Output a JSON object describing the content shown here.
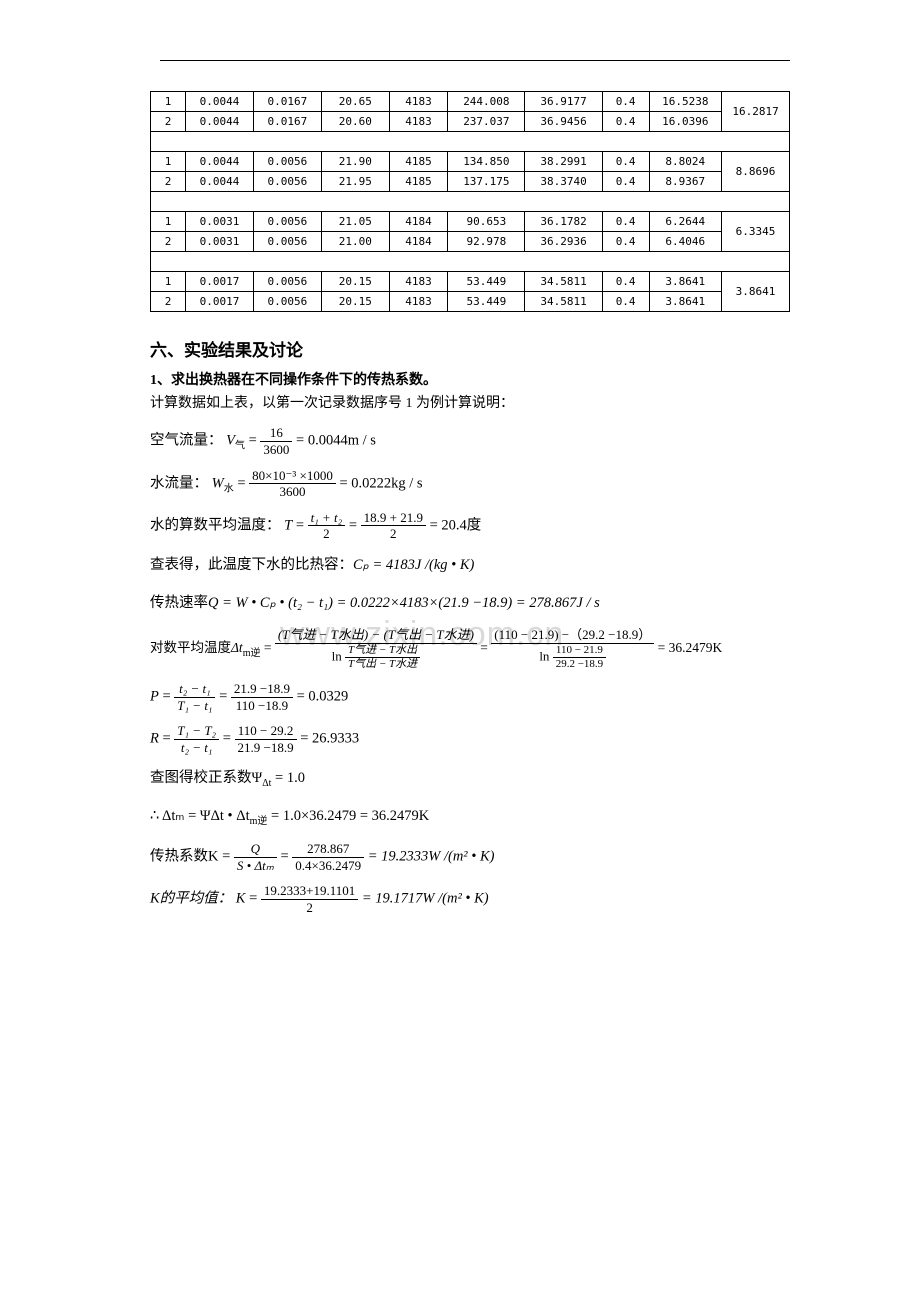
{
  "table": {
    "col_widths": [
      "30px",
      "58px",
      "58px",
      "58px",
      "50px",
      "66px",
      "66px",
      "40px",
      "62px",
      "58px"
    ],
    "groups": [
      {
        "rows": [
          [
            "1",
            "0.0044",
            "0.0167",
            "20.65",
            "4183",
            "244.008",
            "36.9177",
            "0.4",
            "16.5238"
          ],
          [
            "2",
            "0.0044",
            "0.0167",
            "20.60",
            "4183",
            "237.037",
            "36.9456",
            "0.4",
            "16.0396"
          ]
        ],
        "avg": "16.2817"
      },
      {
        "rows": [
          [
            "1",
            "0.0044",
            "0.0056",
            "21.90",
            "4185",
            "134.850",
            "38.2991",
            "0.4",
            "8.8024"
          ],
          [
            "2",
            "0.0044",
            "0.0056",
            "21.95",
            "4185",
            "137.175",
            "38.3740",
            "0.4",
            "8.9367"
          ]
        ],
        "avg": "8.8696"
      },
      {
        "rows": [
          [
            "1",
            "0.0031",
            "0.0056",
            "21.05",
            "4184",
            "90.653",
            "36.1782",
            "0.4",
            "6.2644"
          ],
          [
            "2",
            "0.0031",
            "0.0056",
            "21.00",
            "4184",
            "92.978",
            "36.2936",
            "0.4",
            "6.4046"
          ]
        ],
        "avg": "6.3345"
      },
      {
        "rows": [
          [
            "1",
            "0.0017",
            "0.0056",
            "20.15",
            "4183",
            "53.449",
            "34.5811",
            "0.4",
            "3.8641"
          ],
          [
            "2",
            "0.0017",
            "0.0056",
            "20.15",
            "4183",
            "53.449",
            "34.5811",
            "0.4",
            "3.8641"
          ]
        ],
        "avg": "3.8641"
      }
    ]
  },
  "section6": {
    "title": "六、实验结果及讨论",
    "subtitle": "1、求出换热器在不同操作条件下的传热系数。",
    "intro": "计算数据如上表，以第一次记录数据序号 1 为例计算说明："
  },
  "formulas": {
    "air_flow_label": "空气流量：",
    "air_flow_var": "V",
    "air_flow_sub": "气",
    "air_flow_num": "16",
    "air_flow_den": "3600",
    "air_flow_result": "= 0.0044m / s",
    "water_flow_label": "水流量：",
    "water_flow_var": "W",
    "water_flow_sub": "水",
    "water_flow_num": "80×10⁻³ ×1000",
    "water_flow_den": "3600",
    "water_flow_result": "= 0.0222kg / s",
    "avg_temp_label": "水的算数平均温度：",
    "avg_temp_var": "T",
    "avg_temp_eq": " = ",
    "avg_temp_num1": "t₁ + t₂",
    "avg_temp_den1": "2",
    "avg_temp_num2": "18.9 + 21.9",
    "avg_temp_den2": "2",
    "avg_temp_result": " = 20.4度",
    "cp_label": "查表得，此温度下水的比热容：",
    "cp_value": "Cₚ = 4183J /(kg • K)",
    "q_label": "传热速率",
    "q_formula": "Q = W • Cₚ • (t₂ − t₁) = 0.0222×4183×(21.9 −18.9) = 278.867J / s",
    "dtm_label": "对数平均温度",
    "dtm_var": "Δt",
    "dtm_sub": "m逆",
    "dtm_num1": "(T气进 − T水出) − (T气出 − T水进)",
    "dtm_den1_top": "T气进 − T水出",
    "dtm_den1_bot": "T气出 − T水进",
    "dtm_num2": "(110 − 21.9) −（29.2 −18.9）",
    "dtm_den2_top": "110 − 21.9",
    "dtm_den2_bot": "29.2 −18.9",
    "dtm_result": " = 36.2479K",
    "p_var": "P",
    "p_num1": "t₂ − t₁",
    "p_den1": "T₁ − t₁",
    "p_num2": "21.9 −18.9",
    "p_den2": "110 −18.9",
    "p_result": " = 0.0329",
    "r_var": "R",
    "r_num1": "T₁ − T₂",
    "r_den1": "t₂ − t₁",
    "r_num2": "110 − 29.2",
    "r_den2": "21.9 −18.9",
    "r_result": " = 26.9333",
    "psi_label": "查图得校正系数Ψ",
    "psi_sub": "Δt",
    "psi_result": " = 1.0",
    "therefore": "∴ Δtₘ = ΨΔt • Δt",
    "therefore_sub": "m逆",
    "therefore_result": " = 1.0×36.2479 = 36.2479K",
    "k_label": "传热系数K",
    "k_num1": "Q",
    "k_den1": "S • Δtₘ",
    "k_num2": "278.867",
    "k_den2": "0.4×36.2479",
    "k_result": " = 19.2333W /(m² • K)",
    "kavg_label": "K的平均值：",
    "kavg_var": "K",
    "kavg_num": "19.2333+19.1101",
    "kavg_den": "2",
    "kavg_result": " = 19.1717W /(m² • K)"
  },
  "watermark": "www.zixin.com.cn"
}
